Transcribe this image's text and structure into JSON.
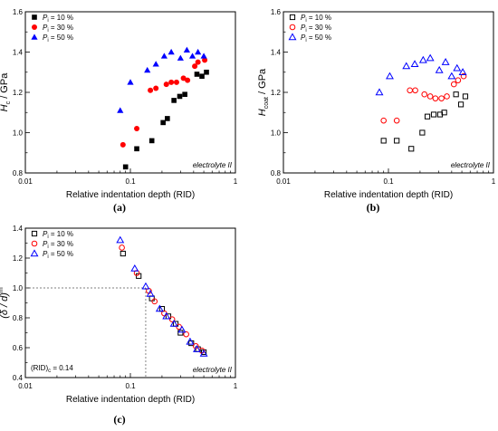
{
  "chart_data": [
    {
      "type": "scatter",
      "panel_label": "(a)",
      "xlabel": "Relative indentation depth (RID)",
      "ylabel_main": "H",
      "ylabel_sub": "c",
      "ylabel_unit": " / GPa",
      "xscale": "log",
      "xlim": [
        0.01,
        1
      ],
      "ylim": [
        0.8,
        1.6
      ],
      "xticks": [
        0.01,
        0.1,
        1
      ],
      "xtick_labels": [
        "0.01",
        "0.1",
        "1"
      ],
      "yticks": [
        0.8,
        1.0,
        1.2,
        1.4,
        1.6
      ],
      "ytick_labels": [
        "0.8",
        "1.0",
        "1.2",
        "1.4",
        "1.6"
      ],
      "legend_position": "top-left",
      "annotation": "electrolyte II",
      "series": [
        {
          "name": "P = 10 %",
          "legend_main": "P",
          "legend_sub": "i",
          "legend_rest": " = 10 %",
          "marker": "square",
          "filled": true,
          "color": "#000000",
          "x": [
            0.09,
            0.115,
            0.16,
            0.205,
            0.225,
            0.26,
            0.295,
            0.33,
            0.43,
            0.48,
            0.53
          ],
          "y": [
            0.83,
            0.92,
            0.96,
            1.05,
            1.07,
            1.16,
            1.18,
            1.19,
            1.29,
            1.28,
            1.3
          ]
        },
        {
          "name": "P = 30 %",
          "legend_main": "P",
          "legend_sub": "i",
          "legend_rest": " = 30 %",
          "marker": "circle",
          "filled": true,
          "color": "#ff0000",
          "x": [
            0.085,
            0.115,
            0.155,
            0.175,
            0.22,
            0.245,
            0.275,
            0.32,
            0.35,
            0.41,
            0.44,
            0.51
          ],
          "y": [
            0.94,
            1.02,
            1.21,
            1.22,
            1.24,
            1.25,
            1.25,
            1.27,
            1.26,
            1.33,
            1.35,
            1.36
          ]
        },
        {
          "name": "P = 50 %",
          "legend_main": "P",
          "legend_sub": "i",
          "legend_rest": " = 50 %",
          "marker": "triangle",
          "filled": true,
          "color": "#0000ff",
          "x": [
            0.08,
            0.1,
            0.145,
            0.175,
            0.21,
            0.245,
            0.3,
            0.345,
            0.39,
            0.44,
            0.5
          ],
          "y": [
            1.11,
            1.25,
            1.31,
            1.34,
            1.38,
            1.4,
            1.37,
            1.41,
            1.38,
            1.4,
            1.38
          ]
        }
      ]
    },
    {
      "type": "scatter",
      "panel_label": "(b)",
      "xlabel": "Relative indentation depth (RID)",
      "ylabel_main": "H",
      "ylabel_sub": "coat",
      "ylabel_unit": " / GPa",
      "xscale": "log",
      "xlim": [
        0.01,
        1
      ],
      "ylim": [
        0.8,
        1.6
      ],
      "xticks": [
        0.01,
        0.1,
        1
      ],
      "xtick_labels": [
        "0.01",
        "0.1",
        "1"
      ],
      "yticks": [
        0.8,
        1.0,
        1.2,
        1.4,
        1.6
      ],
      "ytick_labels": [
        "0.8",
        "1.0",
        "1.2",
        "1.4",
        "1.6"
      ],
      "legend_position": "top-left",
      "annotation": "electrolyte II",
      "series": [
        {
          "name": "P = 10 %",
          "legend_main": "P",
          "legend_sub": "i",
          "legend_rest": " = 10 %",
          "marker": "square",
          "filled": false,
          "color": "#000000",
          "x": [
            0.09,
            0.12,
            0.165,
            0.21,
            0.235,
            0.27,
            0.31,
            0.34,
            0.44,
            0.49,
            0.54
          ],
          "y": [
            0.96,
            0.96,
            0.92,
            1.0,
            1.08,
            1.09,
            1.09,
            1.1,
            1.19,
            1.14,
            1.18
          ]
        },
        {
          "name": "P = 30 %",
          "legend_main": "P",
          "legend_sub": "i",
          "legend_rest": " = 30 %",
          "marker": "circle",
          "filled": false,
          "color": "#ff0000",
          "x": [
            0.09,
            0.12,
            0.16,
            0.18,
            0.22,
            0.25,
            0.28,
            0.32,
            0.36,
            0.42,
            0.46,
            0.52
          ],
          "y": [
            1.06,
            1.06,
            1.21,
            1.21,
            1.19,
            1.18,
            1.17,
            1.17,
            1.18,
            1.24,
            1.26,
            1.28
          ]
        },
        {
          "name": "P = 50 %",
          "legend_main": "P",
          "legend_sub": "i",
          "legend_rest": " = 50 %",
          "marker": "triangle",
          "filled": false,
          "color": "#0000ff",
          "x": [
            0.082,
            0.103,
            0.148,
            0.178,
            0.214,
            0.25,
            0.305,
            0.35,
            0.4,
            0.45,
            0.51
          ],
          "y": [
            1.2,
            1.28,
            1.33,
            1.34,
            1.36,
            1.37,
            1.31,
            1.35,
            1.28,
            1.32,
            1.3
          ]
        }
      ]
    },
    {
      "type": "scatter",
      "panel_label": "(c)",
      "xlabel": "Relative indentation depth (RID)",
      "ylabel_main": "(δ / d)",
      "ylabel_sup": "m",
      "xscale": "log",
      "xlim": [
        0.01,
        1
      ],
      "ylim": [
        0.4,
        1.4
      ],
      "xticks": [
        0.01,
        0.1,
        1
      ],
      "xtick_labels": [
        "0.01",
        "0.1",
        "1"
      ],
      "yticks": [
        0.4,
        0.6,
        0.8,
        1.0,
        1.2,
        1.4
      ],
      "ytick_labels": [
        "0.4",
        "0.6",
        "0.8",
        "1.0",
        "1.2",
        "1.4"
      ],
      "legend_position": "top-left",
      "annotation": "electrolyte II",
      "reference": {
        "rid_c": 0.14,
        "y": 1.0,
        "label_main": "(RID)",
        "label_sub": "c",
        "label_rest": " = 0.14"
      },
      "series": [
        {
          "name": "P = 10 %",
          "legend_main": "P",
          "legend_sub": "i",
          "legend_rest": " = 10 %",
          "marker": "square",
          "filled": false,
          "color": "#000000",
          "x": [
            0.085,
            0.12,
            0.16,
            0.2,
            0.23,
            0.27,
            0.3,
            0.38,
            0.44,
            0.5
          ],
          "y": [
            1.23,
            1.08,
            0.93,
            0.86,
            0.81,
            0.76,
            0.7,
            0.63,
            0.59,
            0.57
          ]
        },
        {
          "name": "P = 30 %",
          "legend_main": "P",
          "legend_sub": "i",
          "legend_rest": " = 30 %",
          "marker": "circle",
          "filled": false,
          "color": "#ff0000",
          "x": [
            0.083,
            0.115,
            0.15,
            0.17,
            0.21,
            0.25,
            0.29,
            0.34,
            0.42,
            0.48
          ],
          "y": [
            1.27,
            1.1,
            0.98,
            0.91,
            0.83,
            0.79,
            0.74,
            0.69,
            0.61,
            0.58
          ]
        },
        {
          "name": "P = 50 %",
          "legend_main": "P",
          "legend_sub": "i",
          "legend_rest": " = 50 %",
          "marker": "triangle",
          "filled": false,
          "color": "#0000ff",
          "x": [
            0.08,
            0.11,
            0.14,
            0.155,
            0.19,
            0.22,
            0.26,
            0.31,
            0.37,
            0.43,
            0.5
          ],
          "y": [
            1.32,
            1.13,
            1.01,
            0.96,
            0.86,
            0.81,
            0.76,
            0.72,
            0.64,
            0.59,
            0.56
          ]
        }
      ]
    }
  ]
}
